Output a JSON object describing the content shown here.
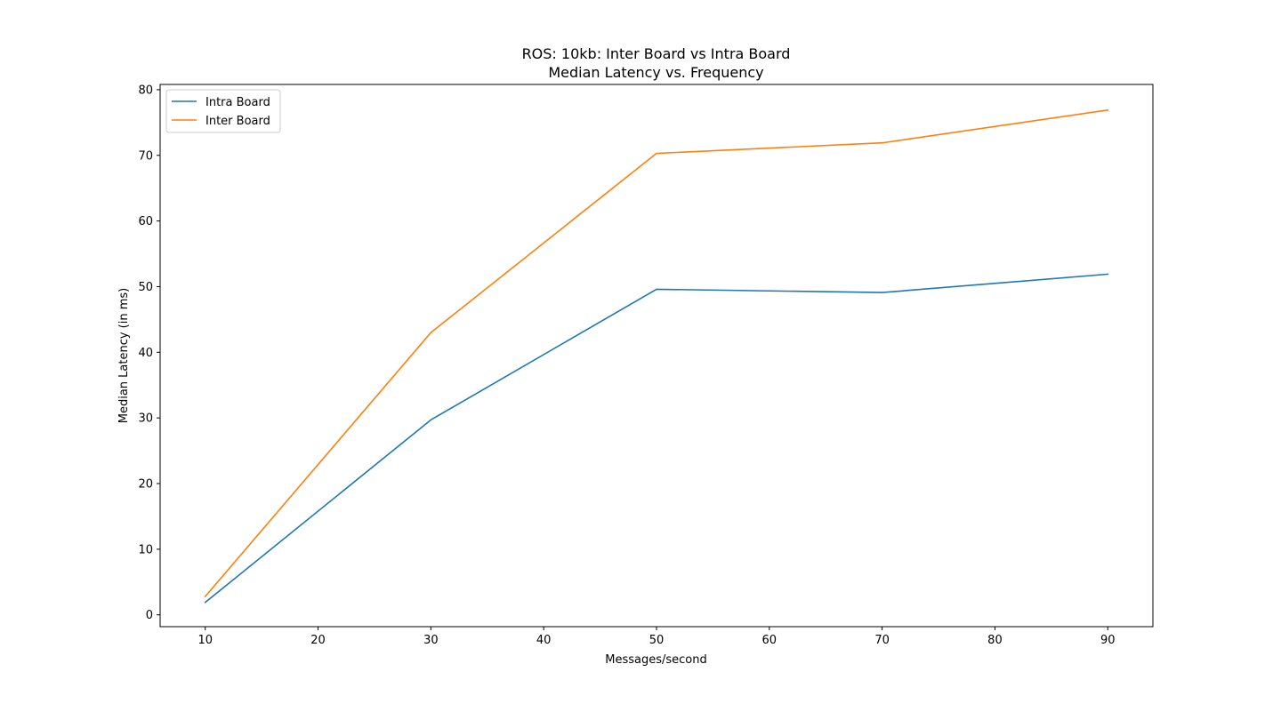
{
  "chart_data": {
    "type": "line",
    "title": "ROS: 10kb: Inter Board vs Intra Board",
    "subtitle": "Median Latency vs. Frequency",
    "xlabel": "Messages/second",
    "ylabel": "Median Latency (in ms)",
    "x": [
      10,
      30,
      50,
      70,
      90
    ],
    "xlim": [
      6,
      94
    ],
    "ylim": [
      -1.8,
      80.8
    ],
    "xticks": [
      10,
      20,
      30,
      40,
      50,
      60,
      70,
      80,
      90
    ],
    "yticks": [
      0,
      10,
      20,
      30,
      40,
      50,
      60,
      70,
      80
    ],
    "grid": false,
    "legend": "top-left",
    "series": [
      {
        "name": "Intra Board",
        "color": "#1f77b4",
        "values": [
          1.9,
          29.7,
          49.6,
          49.1,
          51.9
        ]
      },
      {
        "name": "Inter Board",
        "color": "#ff7f0e",
        "values": [
          2.8,
          43.0,
          70.3,
          71.9,
          76.9
        ]
      }
    ]
  }
}
